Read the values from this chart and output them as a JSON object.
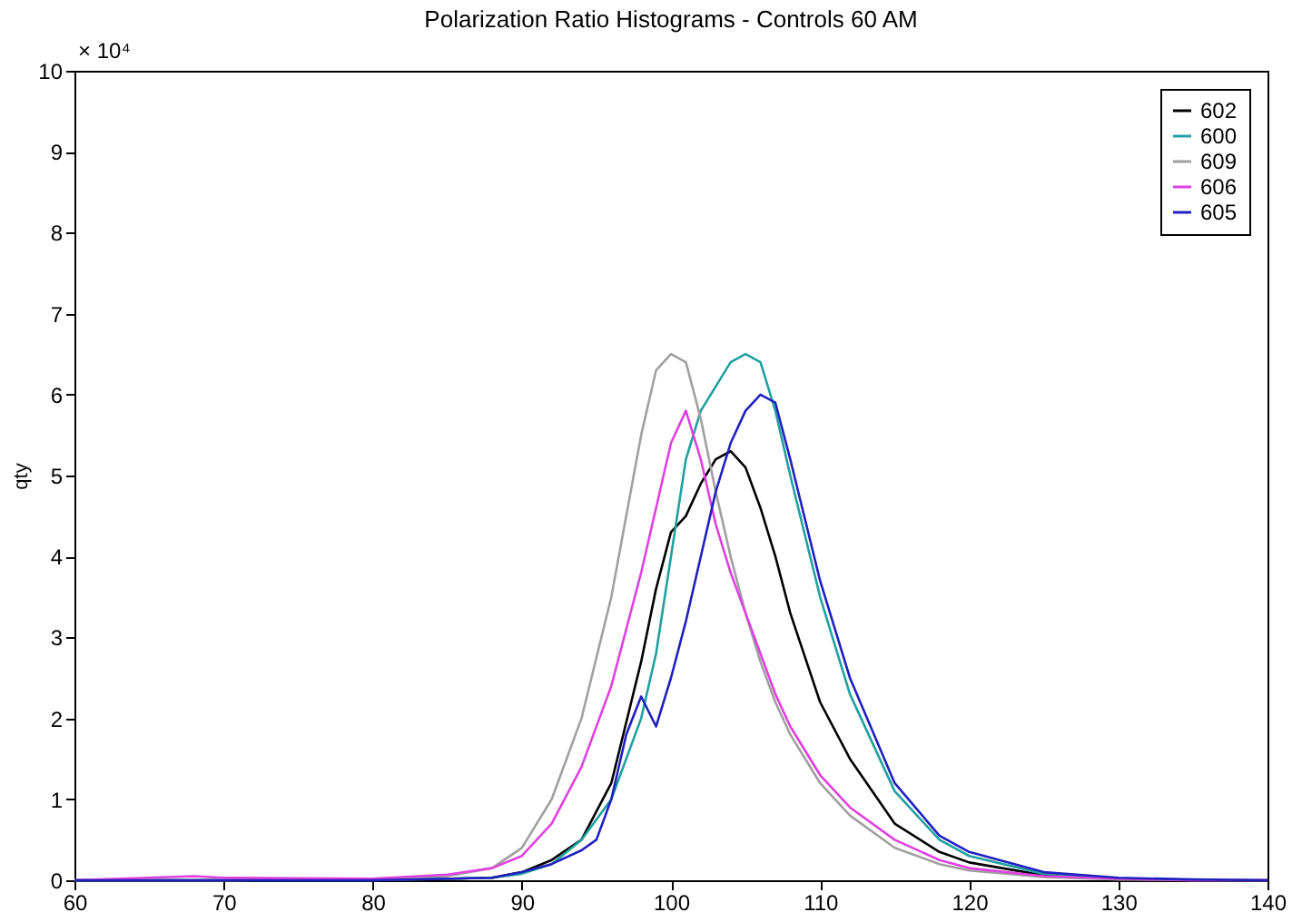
{
  "chart_data": {
    "type": "line",
    "title": "Polarization Ratio Histograms - Controls 60 AM",
    "ylabel": "qty",
    "annotations": [
      "× 10⁴"
    ],
    "xlim": [
      60,
      140
    ],
    "xticks": [
      60,
      70,
      80,
      90,
      100,
      110,
      120,
      130,
      140
    ],
    "ylim": [
      0,
      10
    ],
    "yticks": [
      0,
      1,
      2,
      3,
      4,
      5,
      6,
      7,
      8,
      9,
      10
    ],
    "grid": false,
    "legend": "top right",
    "marker": "none",
    "line_style": "solid",
    "series": [
      {
        "name": "602",
        "color": "#000000",
        "x": [
          60,
          80,
          88,
          90,
          92,
          94,
          96,
          98,
          99,
          100,
          101,
          102,
          103,
          104,
          105,
          106,
          107,
          108,
          110,
          112,
          115,
          118,
          120,
          125,
          130,
          135,
          140
        ],
        "values": [
          0,
          0,
          0.03,
          0.1,
          0.25,
          0.5,
          1.2,
          2.7,
          3.6,
          4.3,
          4.5,
          4.9,
          5.2,
          5.3,
          5.1,
          4.6,
          4.0,
          3.3,
          2.2,
          1.5,
          0.7,
          0.35,
          0.22,
          0.06,
          0.02,
          0,
          0
        ]
      },
      {
        "name": "600",
        "color": "#20a0a0",
        "x": [
          60,
          80,
          88,
          90,
          92,
          94,
          96,
          98,
          99,
          100,
          101,
          102,
          103,
          104,
          105,
          106,
          107,
          108,
          110,
          112,
          115,
          118,
          120,
          125,
          130
        ],
        "values": [
          0,
          0,
          0.03,
          0.08,
          0.2,
          0.5,
          1.0,
          2.0,
          2.8,
          4.0,
          5.2,
          5.8,
          6.1,
          6.4,
          6.5,
          6.4,
          5.8,
          5.0,
          3.5,
          2.3,
          1.1,
          0.5,
          0.3,
          0.08,
          0.02
        ]
      },
      {
        "name": "609",
        "color": "#a0a0a0",
        "x": [
          60,
          70,
          80,
          85,
          88,
          90,
          92,
          94,
          96,
          98,
          99,
          100,
          101,
          102,
          103,
          104,
          105,
          106,
          107,
          108,
          110,
          112,
          115,
          118,
          120,
          125,
          130,
          135,
          140
        ],
        "values": [
          0,
          0,
          0.02,
          0.05,
          0.15,
          0.4,
          1.0,
          2.0,
          3.5,
          5.5,
          6.3,
          6.5,
          6.4,
          5.7,
          4.8,
          4.0,
          3.3,
          2.7,
          2.2,
          1.8,
          1.2,
          0.8,
          0.4,
          0.2,
          0.12,
          0.04,
          0.01,
          0,
          0
        ]
      },
      {
        "name": "606",
        "color": "#e040e0",
        "x": [
          60,
          68,
          70,
          80,
          85,
          88,
          90,
          92,
          94,
          96,
          98,
          99,
          100,
          101,
          102,
          103,
          104,
          105,
          106,
          107,
          108,
          110,
          112,
          115,
          118,
          120,
          125,
          130,
          135,
          140
        ],
        "values": [
          0,
          0.05,
          0.03,
          0.02,
          0.07,
          0.15,
          0.3,
          0.7,
          1.4,
          2.4,
          3.8,
          4.6,
          5.4,
          5.8,
          5.2,
          4.4,
          3.8,
          3.3,
          2.8,
          2.3,
          1.9,
          1.3,
          0.9,
          0.5,
          0.25,
          0.15,
          0.05,
          0.02,
          0,
          0
        ]
      },
      {
        "name": "605",
        "color": "#2020c0",
        "x": [
          60,
          80,
          88,
          90,
          92,
          94,
          95,
          96,
          97,
          98,
          99,
          100,
          101,
          102,
          103,
          104,
          105,
          106,
          107,
          108,
          110,
          112,
          115,
          118,
          120,
          125,
          130,
          135,
          140
        ],
        "values": [
          0,
          0,
          0.03,
          0.1,
          0.2,
          0.37,
          0.5,
          1.0,
          1.8,
          2.27,
          1.9,
          2.5,
          3.2,
          4.0,
          4.8,
          5.4,
          5.8,
          6.0,
          5.9,
          5.2,
          3.7,
          2.5,
          1.2,
          0.55,
          0.35,
          0.1,
          0.03,
          0.01,
          0
        ]
      }
    ]
  }
}
